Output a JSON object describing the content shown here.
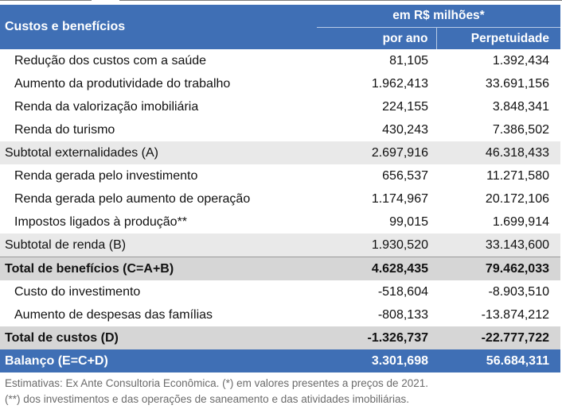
{
  "header": {
    "title": "Custos e benefícios",
    "group": "em R$ milhões*",
    "col1": "por ano",
    "col2": "Perpetuidade"
  },
  "rows": [
    {
      "label": "Redução dos custos com a saúde",
      "ano": "81,105",
      "perp": "1.392,434"
    },
    {
      "label": "Aumento da produtividade do trabalho",
      "ano": "1.962,413",
      "perp": "33.691,156"
    },
    {
      "label": "Renda da valorização imobiliária",
      "ano": "224,155",
      "perp": "3.848,341"
    },
    {
      "label": "Renda do turismo",
      "ano": "430,243",
      "perp": "7.386,502"
    },
    {
      "label": "Subtotal externalidades (A)",
      "ano": "2.697,916",
      "perp": "46.318,433"
    },
    {
      "label": "Renda gerada pelo investimento",
      "ano": "656,537",
      "perp": "11.271,580"
    },
    {
      "label": "Renda gerada pelo aumento de operação",
      "ano": "1.174,967",
      "perp": "20.172,106"
    },
    {
      "label": "Impostos ligados à produção**",
      "ano": "99,015",
      "perp": "1.699,914"
    },
    {
      "label": "Subtotal de renda (B)",
      "ano": "1.930,520",
      "perp": "33.143,600"
    },
    {
      "label": "Total de benefícios (C=A+B)",
      "ano": "4.628,435",
      "perp": "79.462,033"
    },
    {
      "label": "Custo do investimento",
      "ano": "-518,604",
      "perp": "-8.903,510"
    },
    {
      "label": "Aumento de despesas das famílias",
      "ano": "-808,133",
      "perp": "-13.874,212"
    },
    {
      "label": "Total de custos (D)",
      "ano": "-1.326,737",
      "perp": "-22.777,722"
    },
    {
      "label": "Balanço (E=C+D)",
      "ano": "3.301,698",
      "perp": "56.684,311"
    }
  ],
  "notes": {
    "line1": "Estimativas: Ex Ante Consultoria Econômica. (*) em valores presentes a preços de 2021.",
    "line2": "(**) dos investimentos e das operações de saneamento e das atividades imobiliárias."
  },
  "colors": {
    "header_blue": "#3f6fb5",
    "subtotal_gray": "#e9e9e9",
    "total_gray": "#d6d6d6"
  }
}
